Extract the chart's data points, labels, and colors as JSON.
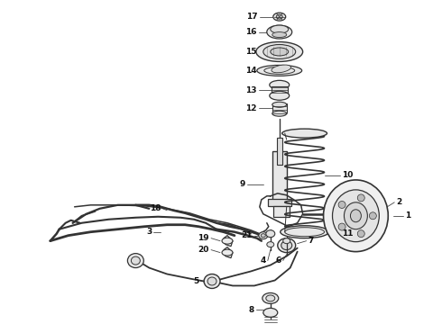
{
  "background_color": "#ffffff",
  "line_color": "#333333",
  "label_color": "#111111",
  "fig_width": 4.9,
  "fig_height": 3.6,
  "dpi": 100
}
